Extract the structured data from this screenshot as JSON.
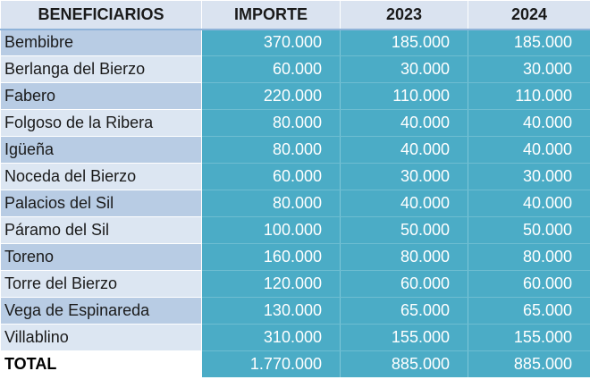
{
  "table": {
    "headers": [
      "BENEFICIARIOS",
      "IMPORTE",
      "2023",
      "2024"
    ],
    "rows": [
      {
        "name": "Bembibre",
        "importe": "370.000",
        "y2023": "185.000",
        "y2024": "185.000"
      },
      {
        "name": "Berlanga del Bierzo",
        "importe": "60.000",
        "y2023": "30.000",
        "y2024": "30.000"
      },
      {
        "name": "Fabero",
        "importe": "220.000",
        "y2023": "110.000",
        "y2024": "110.000"
      },
      {
        "name": "Folgoso de la Ribera",
        "importe": "80.000",
        "y2023": "40.000",
        "y2024": "40.000"
      },
      {
        "name": "Igüeña",
        "importe": "80.000",
        "y2023": "40.000",
        "y2024": "40.000"
      },
      {
        "name": "Noceda del Bierzo",
        "importe": "60.000",
        "y2023": "30.000",
        "y2024": "30.000"
      },
      {
        "name": "Palacios del Sil",
        "importe": "80.000",
        "y2023": "40.000",
        "y2024": "40.000"
      },
      {
        "name": "Páramo del Sil",
        "importe": "100.000",
        "y2023": "50.000",
        "y2024": "50.000"
      },
      {
        "name": "Toreno",
        "importe": "160.000",
        "y2023": "80.000",
        "y2024": "80.000"
      },
      {
        "name": "Torre del Bierzo",
        "importe": "120.000",
        "y2023": "60.000",
        "y2024": "60.000"
      },
      {
        "name": "Vega de Espinareda",
        "importe": "130.000",
        "y2023": "65.000",
        "y2024": "65.000"
      },
      {
        "name": "Villablino",
        "importe": "310.000",
        "y2023": "155.000",
        "y2024": "155.000"
      }
    ],
    "total": {
      "name": "TOTAL",
      "importe": "1.770.000",
      "y2023": "885.000",
      "y2024": "885.000"
    }
  },
  "colors": {
    "header_bg": "#dae3f0",
    "name_band_dark": "#b8cce4",
    "name_band_light": "#dce6f2",
    "value_bg": "#4bacc6",
    "value_text": "#ffffff"
  }
}
